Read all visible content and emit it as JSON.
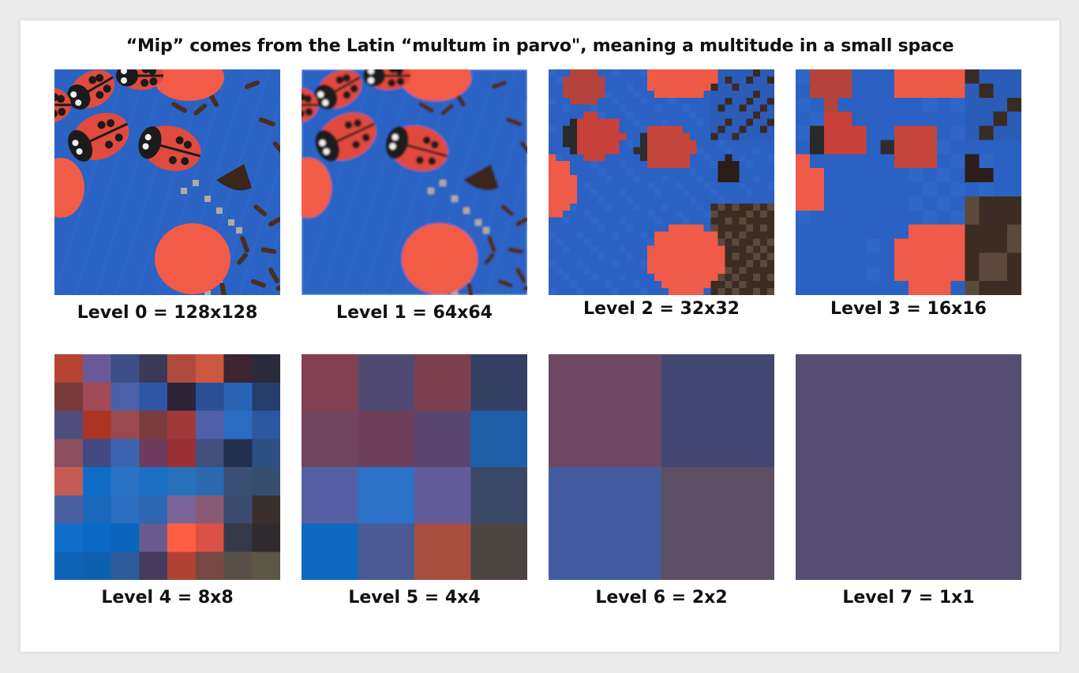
{
  "title": "“Mip” comes from the Latin “multum in parvo\", meaning a multitude in a small space",
  "levels": [
    {
      "label": "Level 0 = 128x128"
    },
    {
      "label": "Level 1 = 64x64"
    },
    {
      "label": "Level 2 = 32x32"
    },
    {
      "label": "Level 3 = 16x16"
    },
    {
      "label": "Level 4 = 8x8"
    },
    {
      "label": "Level 5 = 4x4"
    },
    {
      "label": "Level 6 = 2x2"
    },
    {
      "label": "Level 7 = 1x1"
    }
  ],
  "colors": {
    "background_blue": "#2a63c4",
    "ladybug_red": "#e14a3e",
    "candy_orange": "#f25b47",
    "chocolate": "#4a2e1f",
    "level7": "#564d73"
  }
}
